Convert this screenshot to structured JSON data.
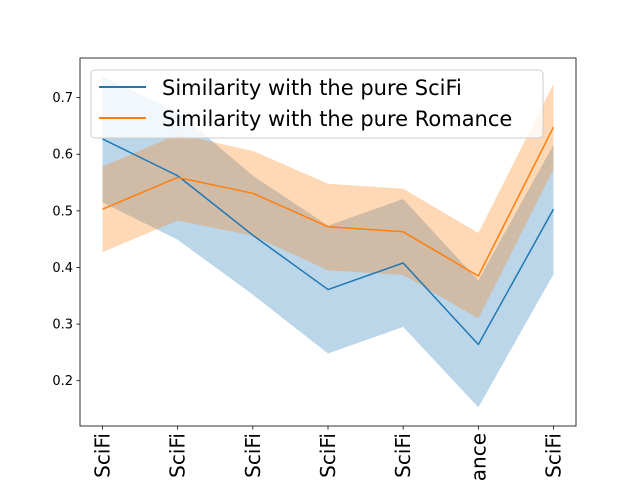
{
  "chart_data": {
    "type": "line",
    "x_tick_labels": [
      "SciFi",
      "SciFi",
      "SciFi",
      "SciFi",
      "SciFi",
      "ance",
      "SciFi"
    ],
    "x_positions": [
      0,
      1,
      2,
      3,
      4,
      5,
      6
    ],
    "ylim": [
      0.12,
      0.77
    ],
    "y_ticks": [
      0.2,
      0.3,
      0.4,
      0.5,
      0.6,
      0.7
    ],
    "y_tick_labels": [
      "0.2",
      "0.3",
      "0.4",
      "0.5",
      "0.6",
      "0.7"
    ],
    "grid": false,
    "legend_position": "top-right",
    "series": [
      {
        "name": "Similarity with the pure SciFi",
        "color": "#1f77b4",
        "band_color": "#1f77b4",
        "band_opacity": 0.3,
        "values": [
          0.627,
          0.562,
          0.457,
          0.361,
          0.408,
          0.264,
          0.503
        ],
        "lower": [
          0.515,
          0.449,
          0.352,
          0.248,
          0.295,
          0.153,
          0.388
        ],
        "upper": [
          0.737,
          0.675,
          0.562,
          0.474,
          0.521,
          0.377,
          0.617
        ]
      },
      {
        "name": "Similarity with the pure Romance",
        "color": "#ff7f0e",
        "band_color": "#ff7f0e",
        "band_opacity": 0.3,
        "values": [
          0.503,
          0.559,
          0.531,
          0.472,
          0.463,
          0.385,
          0.648
        ],
        "lower": [
          0.427,
          0.483,
          0.456,
          0.395,
          0.387,
          0.31,
          0.573
        ],
        "upper": [
          0.578,
          0.635,
          0.606,
          0.548,
          0.539,
          0.461,
          0.724
        ]
      }
    ]
  }
}
